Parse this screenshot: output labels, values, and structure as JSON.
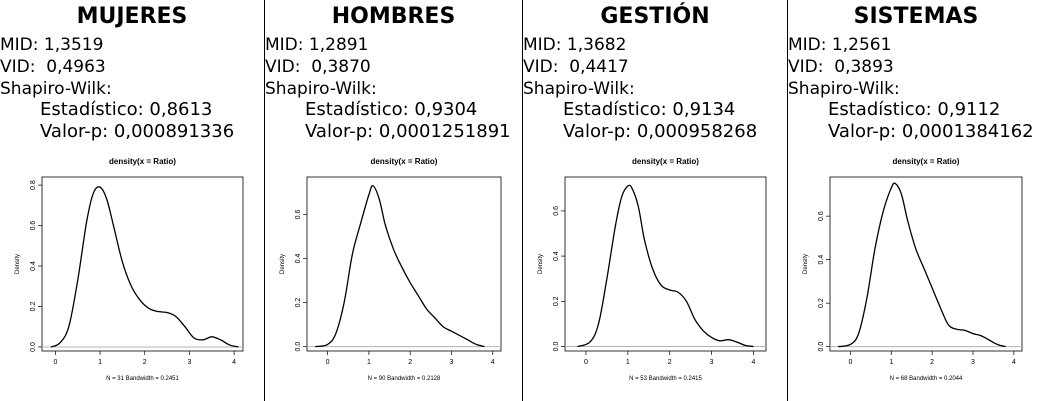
{
  "panels": [
    {
      "title": "MUJERES",
      "mid_label": "MID:",
      "mid_value": "1,3519",
      "vid_label": "VID:",
      "vid_value": "0,4963",
      "test_label": "Shapiro-Wilk:",
      "stat_label": "Estadístico:",
      "stat_value": "0,8613",
      "p_label": "Valor-p:",
      "p_value": "0,000891336"
    },
    {
      "title": "HOMBRES",
      "mid_label": "MID:",
      "mid_value": "1,2891",
      "vid_label": "VID:",
      "vid_value": "0,3870",
      "test_label": "Shapiro-Wilk:",
      "stat_label": "Estadístico:",
      "stat_value": "0,9304",
      "p_label": "Valor-p:",
      "p_value": "0,0001251891"
    },
    {
      "title": "GESTIÓN",
      "mid_label": "MID:",
      "mid_value": "1,3682",
      "vid_label": "VID:",
      "vid_value": "0,4417",
      "test_label": "Shapiro-Wilk:",
      "stat_label": "Estadístico:",
      "stat_value": "0,9134",
      "p_label": "Valor-p:",
      "p_value": "0,000958268"
    },
    {
      "title": "SISTEMAS",
      "mid_label": "MID:",
      "mid_value": "1,2561",
      "vid_label": "VID:",
      "vid_value": "0,3893",
      "test_label": "Shapiro-Wilk:",
      "stat_label": "Estadístico:",
      "stat_value": "0,9112",
      "p_label": "Valor-p:",
      "p_value": "0,0001384162"
    }
  ],
  "chart_data": [
    {
      "type": "line",
      "title": "density(x = Ratio)",
      "xlabel": "N = 31   Bandwidth = 0.2451",
      "ylabel": "Density",
      "xlim": [
        -0.3,
        4.2
      ],
      "ylim": [
        -0.02,
        0.84
      ],
      "xticks": [
        0,
        1,
        2,
        3,
        4
      ],
      "yticks": [
        0.0,
        0.2,
        0.4,
        0.6,
        0.8
      ],
      "ytick_labels": [
        "0.0",
        "0.2",
        "0.4",
        "0.6",
        "0.8"
      ],
      "x": [
        -0.1,
        0.1,
        0.3,
        0.5,
        0.7,
        0.85,
        1.0,
        1.15,
        1.3,
        1.5,
        1.7,
        1.9,
        2.1,
        2.3,
        2.5,
        2.7,
        2.9,
        3.1,
        3.3,
        3.5,
        3.7,
        3.9,
        4.1
      ],
      "y": [
        0.0,
        0.02,
        0.1,
        0.33,
        0.62,
        0.76,
        0.79,
        0.73,
        0.6,
        0.42,
        0.3,
        0.23,
        0.19,
        0.175,
        0.17,
        0.15,
        0.1,
        0.045,
        0.035,
        0.05,
        0.035,
        0.01,
        0.0
      ],
      "baseline": 0
    },
    {
      "type": "line",
      "title": "density(x = Ratio)",
      "xlabel": "N = 90   Bandwidth = 0.2128",
      "ylabel": "Density",
      "xlim": [
        -0.5,
        4.2
      ],
      "ylim": [
        -0.02,
        0.77
      ],
      "xticks": [
        0,
        1,
        2,
        3,
        4
      ],
      "yticks": [
        0.0,
        0.2,
        0.4,
        0.6
      ],
      "ytick_labels": [
        "0.0",
        "0.2",
        "0.4",
        "0.6"
      ],
      "x": [
        -0.3,
        0.0,
        0.2,
        0.4,
        0.6,
        0.8,
        1.0,
        1.1,
        1.25,
        1.4,
        1.6,
        1.8,
        2.0,
        2.2,
        2.4,
        2.6,
        2.8,
        3.0,
        3.2,
        3.4,
        3.6,
        3.8
      ],
      "y": [
        0.0,
        0.01,
        0.06,
        0.2,
        0.42,
        0.56,
        0.69,
        0.73,
        0.67,
        0.55,
        0.44,
        0.36,
        0.29,
        0.23,
        0.17,
        0.13,
        0.09,
        0.07,
        0.05,
        0.03,
        0.01,
        0.0
      ],
      "baseline": 0
    },
    {
      "type": "line",
      "title": "density(x = Ratio)",
      "xlabel": "N = 53   Bandwidth = 0.2415",
      "ylabel": "Density",
      "xlim": [
        -0.5,
        4.3
      ],
      "ylim": [
        -0.02,
        0.75
      ],
      "xticks": [
        0,
        1,
        2,
        3,
        4
      ],
      "yticks": [
        0.0,
        0.2,
        0.4,
        0.6
      ],
      "ytick_labels": [
        "0.0",
        "0.2",
        "0.4",
        "0.6"
      ],
      "x": [
        -0.2,
        0.1,
        0.3,
        0.5,
        0.7,
        0.85,
        1.0,
        1.1,
        1.25,
        1.4,
        1.6,
        1.8,
        2.0,
        2.2,
        2.4,
        2.6,
        2.8,
        3.0,
        3.2,
        3.4,
        3.6,
        3.8,
        4.0
      ],
      "y": [
        0.0,
        0.02,
        0.1,
        0.3,
        0.53,
        0.66,
        0.71,
        0.7,
        0.62,
        0.47,
        0.34,
        0.27,
        0.25,
        0.24,
        0.2,
        0.12,
        0.07,
        0.04,
        0.025,
        0.03,
        0.02,
        0.005,
        0.0
      ],
      "baseline": 0
    },
    {
      "type": "line",
      "title": "density(x = Ratio)",
      "xlabel": "N = 68   Bandwidth = 0.2044",
      "ylabel": "Density",
      "xlim": [
        -0.5,
        4.2
      ],
      "ylim": [
        -0.02,
        0.78
      ],
      "xticks": [
        0,
        1,
        2,
        3,
        4
      ],
      "yticks": [
        0.0,
        0.2,
        0.4,
        0.6
      ],
      "ytick_labels": [
        "0.0",
        "0.2",
        "0.4",
        "0.6"
      ],
      "x": [
        -0.3,
        0.0,
        0.2,
        0.4,
        0.6,
        0.8,
        1.0,
        1.1,
        1.25,
        1.4,
        1.6,
        1.8,
        2.0,
        2.2,
        2.4,
        2.6,
        2.8,
        3.0,
        3.2,
        3.4,
        3.6,
        3.8
      ],
      "y": [
        0.0,
        0.01,
        0.06,
        0.22,
        0.45,
        0.62,
        0.73,
        0.75,
        0.7,
        0.58,
        0.45,
        0.36,
        0.27,
        0.18,
        0.1,
        0.08,
        0.075,
        0.06,
        0.05,
        0.03,
        0.01,
        0.0
      ],
      "baseline": 0
    }
  ],
  "colors": {
    "curve": "#000000",
    "baseline": "#b3b3b3",
    "frame": "#000000"
  }
}
